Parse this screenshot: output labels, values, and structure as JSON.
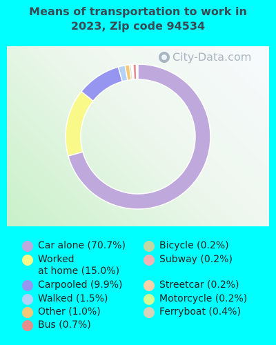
{
  "chart_data": {
    "type": "pie",
    "title": "Means of transportation to work in\n2023, Zip code 94534",
    "watermark": "City-Data.com",
    "slices": [
      {
        "label": "Car alone (70.7%)",
        "value": 70.7,
        "color": "#bfa8dc"
      },
      {
        "label": "Worked\nat home (15.0%)",
        "value": 15.0,
        "color": "#f9f98a"
      },
      {
        "label": "Carpooled (9.9%)",
        "value": 9.9,
        "color": "#9696f0"
      },
      {
        "label": "Walked (1.5%)",
        "value": 1.5,
        "color": "#b4d2f5"
      },
      {
        "label": "Other (1.0%)",
        "value": 1.0,
        "color": "#f5c878"
      },
      {
        "label": "Bus (0.7%)",
        "value": 0.7,
        "color": "#e68c8c"
      },
      {
        "label": "Bicycle (0.2%)",
        "value": 0.2,
        "color": "#c3d7a5"
      },
      {
        "label": "Subway (0.2%)",
        "value": 0.2,
        "color": "#f0b4b4"
      },
      {
        "label": "Streetcar (0.2%)",
        "value": 0.2,
        "color": "#fad2aa"
      },
      {
        "label": "Motorcycle (0.2%)",
        "value": 0.2,
        "color": "#d2fa96"
      },
      {
        "label": "Ferryboat (0.4%)",
        "value": 0.4,
        "color": "#d7d2b9"
      }
    ]
  }
}
